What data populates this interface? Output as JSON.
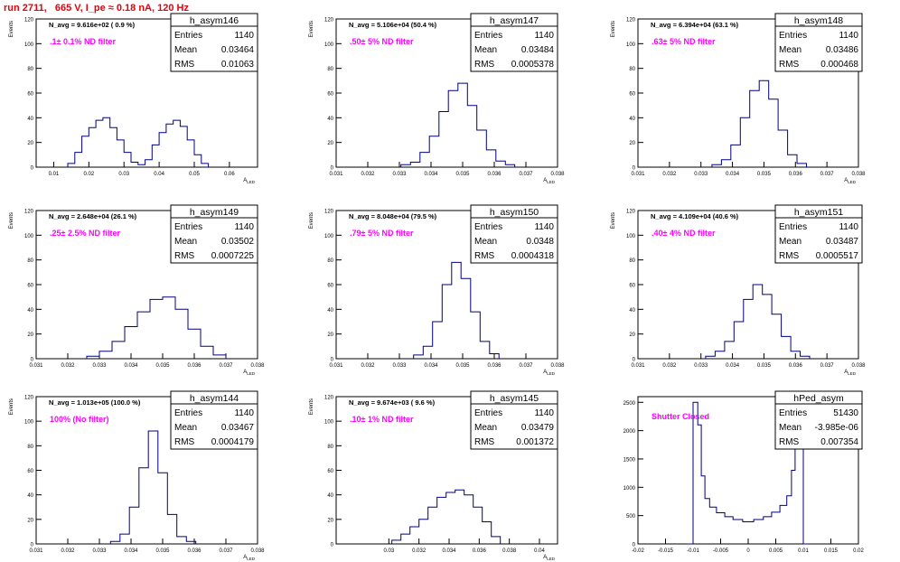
{
  "page_title": "run 2711,   665 V, I_pe ≈ 0.18 nA, 120 Hz",
  "colors": {
    "title": "#e8000b",
    "histogram": "#000080",
    "filter_label": "#ff00ff",
    "axis": "#000000"
  },
  "chart_data": [
    {
      "type": "histogram",
      "name": "h_asym146",
      "ylabel": "Events",
      "xlabel": "A_LED",
      "nav_text": "N_avg = 9.616e+02 ( 0.9 %)",
      "filter_label": ".1± 0.1% ND filter",
      "stats": {
        "entries": "1140",
        "mean": "0.03464",
        "rms": "0.01063"
      },
      "xlim": [
        0.005,
        0.068
      ],
      "ylim": [
        0,
        120
      ],
      "xticks": [
        "0.01",
        "0.02",
        "0.03",
        "0.04",
        "0.05",
        "0.06"
      ],
      "yticks": [
        "0",
        "20",
        "40",
        "60",
        "80",
        "100",
        "120"
      ],
      "x": [
        0.015,
        0.017,
        0.019,
        0.021,
        0.023,
        0.025,
        0.027,
        0.029,
        0.031,
        0.033,
        0.035,
        0.037,
        0.039,
        0.041,
        0.043,
        0.045,
        0.047,
        0.049,
        0.051,
        0.053
      ],
      "values": [
        3,
        12,
        25,
        32,
        38,
        40,
        32,
        22,
        12,
        4,
        2,
        6,
        18,
        28,
        35,
        38,
        33,
        22,
        10,
        3
      ]
    },
    {
      "type": "histogram",
      "name": "h_asym147",
      "ylabel": "Events",
      "xlabel": "A_LED",
      "nav_text": "N_avg = 5.106e+04 (50.4 %)",
      "filter_label": ".50± 5% ND filter",
      "stats": {
        "entries": "1140",
        "mean": "0.03484",
        "rms": "0.0005378"
      },
      "xlim": [
        0.031,
        0.038
      ],
      "ylim": [
        0,
        120
      ],
      "xticks": [
        "0.031",
        "0.032",
        "0.033",
        "0.034",
        "0.035",
        "0.036",
        "0.037",
        "0.038"
      ],
      "yticks": [
        "0",
        "20",
        "40",
        "60",
        "80",
        "100",
        "120"
      ],
      "x": [
        0.0332,
        0.0335,
        0.0338,
        0.0341,
        0.0344,
        0.0347,
        0.035,
        0.0353,
        0.0356,
        0.0359,
        0.0362,
        0.0365
      ],
      "values": [
        2,
        4,
        12,
        25,
        45,
        62,
        68,
        50,
        30,
        14,
        5,
        2
      ]
    },
    {
      "type": "histogram",
      "name": "h_asym148",
      "ylabel": "Events",
      "xlabel": "A_LED",
      "nav_text": "N_avg = 6.394e+04 (63.1 %)",
      "filter_label": ".63± 5% ND filter",
      "stats": {
        "entries": "1140",
        "mean": "0.03486",
        "rms": "0.000468"
      },
      "xlim": [
        0.031,
        0.038
      ],
      "ylim": [
        0,
        120
      ],
      "xticks": [
        "0.031",
        "0.032",
        "0.033",
        "0.034",
        "0.035",
        "0.036",
        "0.037",
        "0.038"
      ],
      "yticks": [
        "0",
        "20",
        "40",
        "60",
        "80",
        "100",
        "120"
      ],
      "x": [
        0.0335,
        0.0338,
        0.0341,
        0.0344,
        0.0347,
        0.035,
        0.0353,
        0.0356,
        0.0359,
        0.0362
      ],
      "values": [
        2,
        6,
        18,
        40,
        62,
        70,
        55,
        30,
        10,
        3
      ]
    },
    {
      "type": "histogram",
      "name": "h_asym149",
      "ylabel": "Events",
      "xlabel": "A_LED",
      "nav_text": "N_avg = 2.648e+04 (26.1 %)",
      "filter_label": ".25± 2.5% ND filter",
      "stats": {
        "entries": "1140",
        "mean": "0.03502",
        "rms": "0.0007225"
      },
      "xlim": [
        0.031,
        0.038
      ],
      "ylim": [
        0,
        120
      ],
      "xticks": [
        "0.031",
        "0.032",
        "0.033",
        "0.034",
        "0.035",
        "0.036",
        "0.037",
        "0.038"
      ],
      "yticks": [
        "0",
        "20",
        "40",
        "60",
        "80",
        "100",
        "120"
      ],
      "x": [
        0.0328,
        0.0332,
        0.0336,
        0.034,
        0.0344,
        0.0348,
        0.0352,
        0.0356,
        0.036,
        0.0364,
        0.0368
      ],
      "values": [
        2,
        6,
        14,
        26,
        38,
        48,
        50,
        40,
        24,
        10,
        3
      ]
    },
    {
      "type": "histogram",
      "name": "h_asym150",
      "ylabel": "Events",
      "xlabel": "A_LED",
      "nav_text": "N_avg = 8.048e+04 (79.5 %)",
      "filter_label": ".79± 5% ND filter",
      "stats": {
        "entries": "1140",
        "mean": "0.0348",
        "rms": "0.0004318"
      },
      "xlim": [
        0.031,
        0.038
      ],
      "ylim": [
        0,
        120
      ],
      "xticks": [
        "0.031",
        "0.032",
        "0.033",
        "0.034",
        "0.035",
        "0.036",
        "0.037",
        "0.038"
      ],
      "yticks": [
        "0",
        "20",
        "40",
        "60",
        "80",
        "100",
        "120"
      ],
      "x": [
        0.0336,
        0.0339,
        0.0342,
        0.0345,
        0.0348,
        0.0351,
        0.0354,
        0.0357,
        0.036
      ],
      "values": [
        3,
        10,
        30,
        60,
        78,
        65,
        38,
        14,
        4
      ]
    },
    {
      "type": "histogram",
      "name": "h_asym151",
      "ylabel": "Events",
      "xlabel": "A_LED",
      "nav_text": "N_avg = 4.109e+04 (40.6 %)",
      "filter_label": ".40± 4% ND filter",
      "stats": {
        "entries": "1140",
        "mean": "0.03487",
        "rms": "0.0005517"
      },
      "xlim": [
        0.031,
        0.038
      ],
      "ylim": [
        0,
        120
      ],
      "xticks": [
        "0.031",
        "0.032",
        "0.033",
        "0.034",
        "0.035",
        "0.036",
        "0.037",
        "0.038"
      ],
      "yticks": [
        "0",
        "20",
        "40",
        "60",
        "80",
        "100",
        "120"
      ],
      "x": [
        0.0333,
        0.0336,
        0.0339,
        0.0342,
        0.0345,
        0.0348,
        0.0351,
        0.0354,
        0.0357,
        0.036,
        0.0363
      ],
      "values": [
        2,
        6,
        14,
        30,
        48,
        60,
        52,
        36,
        18,
        6,
        2
      ]
    },
    {
      "type": "histogram",
      "name": "h_asym144",
      "ylabel": "Events",
      "xlabel": "A_LED",
      "nav_text": "N_avg = 1.013e+05 (100.0 %)",
      "filter_label": "100% (No filter)",
      "stats": {
        "entries": "1140",
        "mean": "0.03467",
        "rms": "0.0004179"
      },
      "xlim": [
        0.031,
        0.038
      ],
      "ylim": [
        0,
        120
      ],
      "xticks": [
        "0.031",
        "0.032",
        "0.033",
        "0.034",
        "0.035",
        "0.036",
        "0.037",
        "0.038"
      ],
      "yticks": [
        "0",
        "20",
        "40",
        "60",
        "80",
        "100",
        "120"
      ],
      "x": [
        0.0335,
        0.0338,
        0.0341,
        0.0344,
        0.0347,
        0.035,
        0.0353,
        0.0356,
        0.0359
      ],
      "values": [
        2,
        8,
        30,
        62,
        92,
        58,
        24,
        6,
        2
      ]
    },
    {
      "type": "histogram",
      "name": "h_asym145",
      "ylabel": "Events",
      "xlabel": "A_LED",
      "nav_text": "N_avg = 9.674e+03 ( 9.6 %)",
      "filter_label": ".10± 1% ND filter",
      "stats": {
        "entries": "1140",
        "mean": "0.03479",
        "rms": "0.001372"
      },
      "xlim": [
        0.0265,
        0.0412
      ],
      "ylim": [
        0,
        120
      ],
      "xticks": [
        "0.03",
        "0.032",
        "0.034",
        "0.036",
        "0.038",
        "0.04"
      ],
      "yticks": [
        "0",
        "20",
        "40",
        "60",
        "80",
        "100",
        "120"
      ],
      "x": [
        0.0305,
        0.0311,
        0.0317,
        0.0323,
        0.0329,
        0.0335,
        0.0341,
        0.0347,
        0.0353,
        0.0359,
        0.0365,
        0.0371
      ],
      "values": [
        3,
        8,
        14,
        20,
        30,
        38,
        42,
        44,
        40,
        30,
        18,
        6
      ]
    },
    {
      "type": "histogram",
      "name": "hPed_asym",
      "ylabel": "",
      "xlabel": "",
      "nav_text": "",
      "filter_label": "Shutter Closed",
      "stats": {
        "entries": "51430",
        "mean": "-3.985e-06",
        "rms": "0.007354"
      },
      "xlim": [
        -0.02,
        0.02
      ],
      "ylim": [
        0,
        2600
      ],
      "xticks": [
        "-0.02",
        "-0.015",
        "-0.01",
        "-0.005",
        "0",
        "0.005",
        "0.01",
        "0.015",
        "0.02"
      ],
      "yticks": [
        "0",
        "500",
        "1000",
        "1500",
        "2000",
        "2500"
      ],
      "x": [
        -0.0105,
        -0.0095,
        -0.0088,
        -0.0082,
        -0.0075,
        -0.0065,
        -0.005,
        -0.0035,
        -0.002,
        0,
        0.002,
        0.0035,
        0.005,
        0.0065,
        0.0075,
        0.0082,
        0.0088,
        0.0095,
        0.0105
      ],
      "values": [
        0,
        2500,
        2100,
        1200,
        800,
        650,
        550,
        480,
        430,
        390,
        430,
        480,
        560,
        680,
        850,
        1300,
        2200,
        2500,
        0
      ]
    }
  ]
}
